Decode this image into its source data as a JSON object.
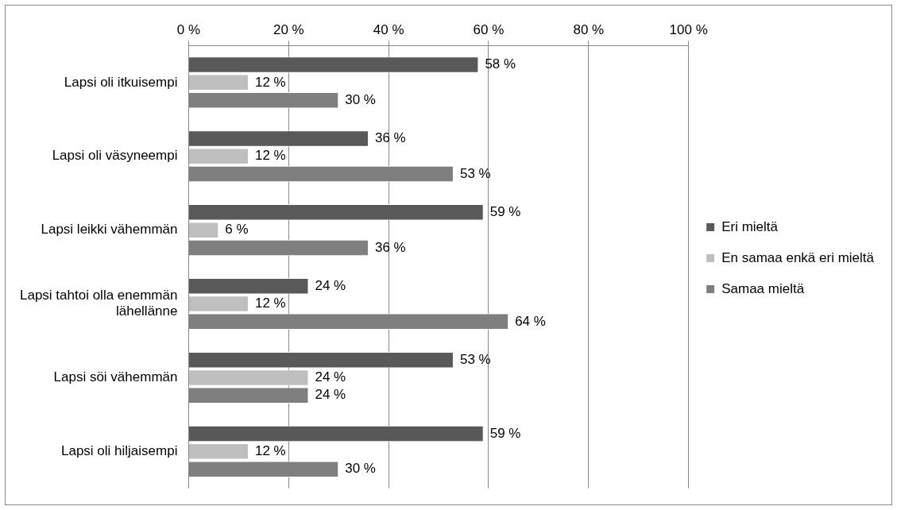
{
  "chart_data": {
    "type": "bar",
    "orientation": "horizontal",
    "categories": [
      "Lapsi oli itkuisempi",
      "Lapsi oli väsyneempi",
      "Lapsi leikki vähemmän",
      "Lapsi tahtoi olla enemmän lähellänne",
      "Lapsi söi vähemmän",
      "Lapsi oli hiljaisempi"
    ],
    "series": [
      {
        "name": "Eri mieltä",
        "color": "#595959",
        "values": [
          58,
          36,
          59,
          24,
          53,
          59
        ],
        "value_labels": [
          "58 %",
          "36 %",
          "59 %",
          "24 %",
          "53 %",
          "59 %"
        ]
      },
      {
        "name": "En samaa enkä eri mieltä",
        "color": "#bfbfbf",
        "values": [
          12,
          12,
          6,
          12,
          24,
          12
        ],
        "value_labels": [
          "12 %",
          "12 %",
          "6 %",
          "12 %",
          "24 %",
          "12 %"
        ]
      },
      {
        "name": "Samaa mieltä",
        "color": "#7f7f7f",
        "values": [
          30,
          53,
          36,
          64,
          24,
          30
        ],
        "value_labels": [
          "30 %",
          "53 %",
          "36 %",
          "64 %",
          "24 %",
          "30 %"
        ]
      }
    ],
    "xlim": [
      0,
      100
    ],
    "xticks": [
      {
        "value": 0,
        "label": "0 %"
      },
      {
        "value": 20,
        "label": "20 %"
      },
      {
        "value": 40,
        "label": "40 %"
      },
      {
        "value": 60,
        "label": "60 %"
      },
      {
        "value": 80,
        "label": "80 %"
      },
      {
        "value": 100,
        "label": "100 %"
      }
    ],
    "grid": "x",
    "legend": "right"
  }
}
